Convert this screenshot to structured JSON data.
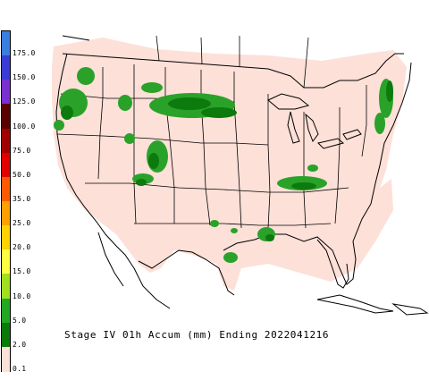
{
  "caption": "Stage IV 01h Accum (mm) Ending 2022041216",
  "legend": {
    "entries": [
      {
        "label": "175.0",
        "color": "#3a7ee0"
      },
      {
        "label": "150.0",
        "color": "#3b3bd6"
      },
      {
        "label": "125.0",
        "color": "#7a2fd0"
      },
      {
        "label": "100.0",
        "color": "#5a0000"
      },
      {
        "label": "75.0",
        "color": "#a00000"
      },
      {
        "label": "50.0",
        "color": "#e00000"
      },
      {
        "label": "35.0",
        "color": "#ff5a00"
      },
      {
        "label": "25.0",
        "color": "#ffa000"
      },
      {
        "label": "20.0",
        "color": "#ffd200"
      },
      {
        "label": "15.0",
        "color": "#ffff40"
      },
      {
        "label": "10.0",
        "color": "#a0e020"
      },
      {
        "label": "5.0",
        "color": "#22a822"
      },
      {
        "label": "2.0",
        "color": "#0a7a0a"
      },
      {
        "label": "0.1",
        "color": "#fde0d8"
      }
    ]
  },
  "colors": {
    "coverage": "#fde0d8",
    "light_precip": "#2aa22a",
    "medium_precip": "#0c7a0c",
    "boundary": "#000000"
  }
}
